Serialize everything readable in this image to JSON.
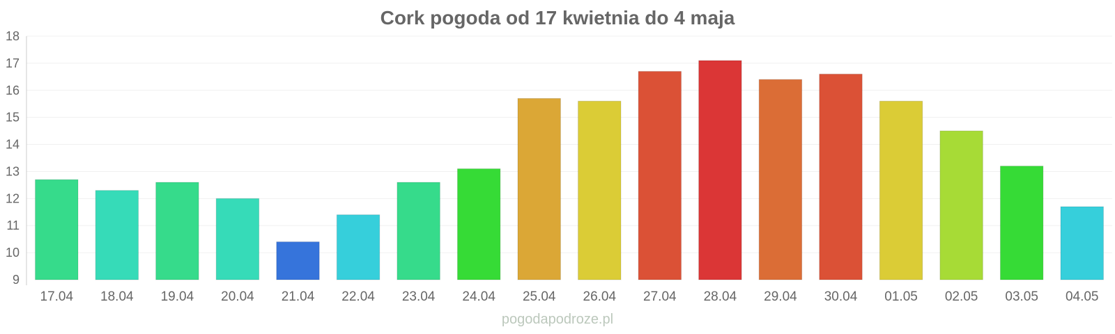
{
  "chart_data": {
    "type": "bar",
    "title": "Cork pogoda od 17 kwietnia do 4 maja",
    "xlabel": "",
    "ylabel": "",
    "ylim": [
      9,
      18
    ],
    "yticks": [
      "9",
      "10",
      "11",
      "12",
      "13",
      "14",
      "15",
      "16",
      "17",
      "18"
    ],
    "grid": true,
    "categories": [
      "17.04",
      "18.04",
      "19.04",
      "20.04",
      "21.04",
      "22.04",
      "23.04",
      "24.04",
      "25.04",
      "26.04",
      "27.04",
      "28.04",
      "29.04",
      "30.04",
      "01.05",
      "02.05",
      "03.05",
      "04.05"
    ],
    "values": [
      12.7,
      12.3,
      12.6,
      12.0,
      10.4,
      11.4,
      12.6,
      13.1,
      15.7,
      15.6,
      16.7,
      17.1,
      16.4,
      16.6,
      15.6,
      14.5,
      13.2,
      11.7
    ],
    "colors": [
      "#36db8b",
      "#36dbb8",
      "#36db8b",
      "#36dbb8",
      "#3674db",
      "#36cfdb",
      "#36db8b",
      "#36db36",
      "#dba736",
      "#dbcc36",
      "#db5136",
      "#db3636",
      "#db6d36",
      "#db5136",
      "#dbcc36",
      "#a7db36",
      "#36db36",
      "#36cfdb"
    ]
  },
  "watermark": "pogodapodroze.pl"
}
